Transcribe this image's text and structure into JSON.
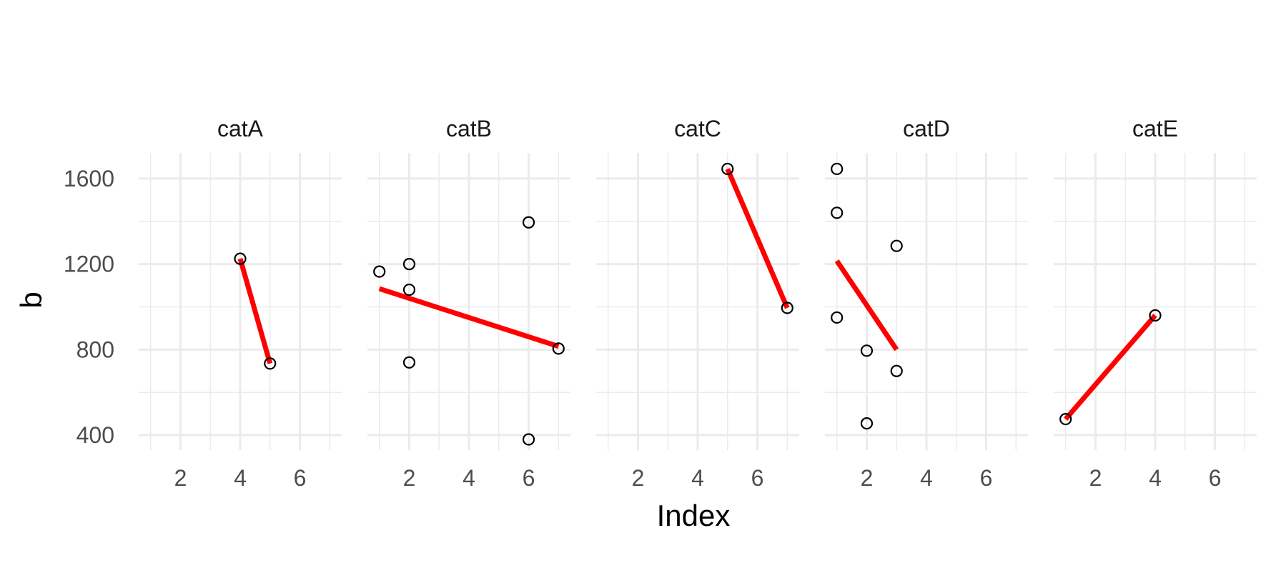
{
  "chart_data": {
    "type": "scatter",
    "xlabel": "Index",
    "ylabel": "b",
    "xlim": [
      0.6,
      7.4
    ],
    "ylim": [
      330,
      1720
    ],
    "x_ticks": [
      2,
      4,
      6
    ],
    "y_ticks": [
      400,
      800,
      1200,
      1600
    ],
    "grid": true,
    "colors": {
      "points": "#000000",
      "fit_line": "#ff0000",
      "grid": "#ebebeb",
      "text": "#4d4d4d"
    },
    "panels": [
      {
        "name": "catA",
        "points": [
          {
            "x": 4,
            "y": 1225
          },
          {
            "x": 5,
            "y": 735
          }
        ],
        "fit_line": [
          {
            "x": 4,
            "y": 1225
          },
          {
            "x": 5,
            "y": 735
          }
        ]
      },
      {
        "name": "catB",
        "points": [
          {
            "x": 1,
            "y": 1165
          },
          {
            "x": 2,
            "y": 1200
          },
          {
            "x": 2,
            "y": 1080
          },
          {
            "x": 2,
            "y": 740
          },
          {
            "x": 6,
            "y": 1395
          },
          {
            "x": 6,
            "y": 380
          },
          {
            "x": 7,
            "y": 805
          }
        ],
        "fit_line": [
          {
            "x": 1,
            "y": 1085
          },
          {
            "x": 7,
            "y": 815
          }
        ]
      },
      {
        "name": "catC",
        "points": [
          {
            "x": 5,
            "y": 1645
          },
          {
            "x": 7,
            "y": 995
          }
        ],
        "fit_line": [
          {
            "x": 5,
            "y": 1645
          },
          {
            "x": 7,
            "y": 995
          }
        ]
      },
      {
        "name": "catD",
        "points": [
          {
            "x": 1,
            "y": 1645
          },
          {
            "x": 1,
            "y": 1440
          },
          {
            "x": 1,
            "y": 950
          },
          {
            "x": 2,
            "y": 795
          },
          {
            "x": 2,
            "y": 455
          },
          {
            "x": 3,
            "y": 1285
          },
          {
            "x": 3,
            "y": 700
          }
        ],
        "fit_line": [
          {
            "x": 1,
            "y": 1215
          },
          {
            "x": 3,
            "y": 800
          }
        ]
      },
      {
        "name": "catE",
        "points": [
          {
            "x": 1,
            "y": 475
          },
          {
            "x": 4,
            "y": 960
          }
        ],
        "fit_line": [
          {
            "x": 1,
            "y": 475
          },
          {
            "x": 4,
            "y": 960
          }
        ]
      }
    ]
  }
}
